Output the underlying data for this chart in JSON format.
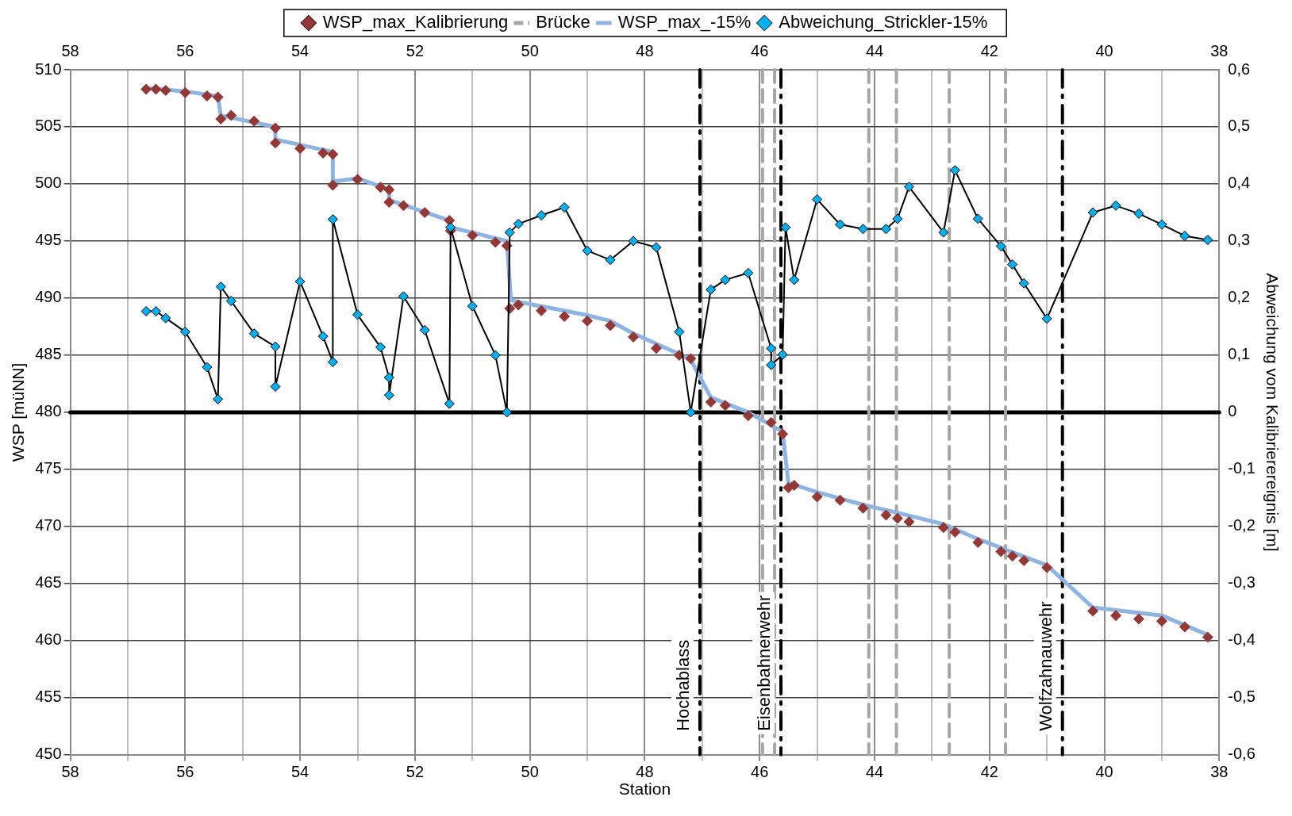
{
  "chart_data": {
    "type": "line",
    "xlabel": "Station",
    "ylabel": "WSP [müNN]",
    "y2label": "Abweichung vom Kalibrierereignis [m]",
    "xlim": [
      58,
      38
    ],
    "xticks": [
      58,
      {
        "value": 57,
        "label": null
      },
      56,
      {
        "value": 55,
        "label": null
      },
      54,
      {
        "value": 53,
        "label": null
      },
      52,
      {
        "value": 51,
        "label": null
      },
      50,
      {
        "value": 49,
        "label": null
      },
      48,
      {
        "value": 47,
        "label": null
      },
      46,
      {
        "value": 45,
        "label": null
      },
      44,
      {
        "value": 43,
        "label": null
      },
      42,
      {
        "value": 41,
        "label": null
      },
      40,
      {
        "value": 39,
        "label": null
      },
      38
    ],
    "x2lim": [
      58,
      38
    ],
    "x2ticks": [
      58,
      56,
      54,
      52,
      50,
      48,
      46,
      44,
      42,
      40,
      38
    ],
    "ylim": [
      450,
      510
    ],
    "yticks": [
      450,
      455,
      460,
      465,
      470,
      475,
      480,
      485,
      490,
      495,
      500,
      505,
      510
    ],
    "y2lim": [
      -0.6,
      0.6
    ],
    "y2ticks": [
      {
        "value": -0.6,
        "label": "-0,6"
      },
      {
        "value": -0.5,
        "label": "-0,5"
      },
      {
        "value": -0.4,
        "label": "-0,4"
      },
      {
        "value": -0.3,
        "label": "-0,3"
      },
      {
        "value": -0.2,
        "label": "-0,2"
      },
      {
        "value": -0.1,
        "label": "-0,1"
      },
      0,
      {
        "value": 0.1,
        "label": "0,1"
      },
      {
        "value": 0.2,
        "label": "0,2"
      },
      {
        "value": 0.3,
        "label": "0,3"
      },
      {
        "value": 0.4,
        "label": "0,4"
      },
      {
        "value": 0.5,
        "label": "0,5"
      },
      {
        "value": 0.6,
        "label": "0,6"
      }
    ],
    "grid": true,
    "legend": "top",
    "series": [
      {
        "name": "WSP_max_Kalibrierung",
        "type": "scatter",
        "marker": "diamond",
        "color": "#953735",
        "x": [
          56.68,
          56.51,
          56.34,
          56.0,
          55.62,
          55.43,
          55.38,
          55.2,
          54.8,
          54.43,
          54.43,
          54.0,
          53.6,
          53.43,
          53.43,
          53.0,
          52.6,
          52.45,
          52.45,
          52.2,
          51.83,
          51.4,
          51.38,
          51.0,
          50.6,
          50.4,
          50.35,
          50.2,
          49.8,
          49.4,
          49.0,
          48.6,
          48.2,
          47.8,
          47.4,
          47.2,
          46.85,
          46.6,
          46.2,
          45.8,
          45.6,
          45.5,
          45.4,
          45.0,
          44.6,
          44.2,
          43.8,
          43.6,
          43.4,
          42.8,
          42.6,
          42.2,
          41.8,
          41.6,
          41.4,
          41.0,
          40.2,
          39.8,
          39.4,
          39.0,
          38.6,
          38.2
        ],
        "values": [
          508.3,
          508.3,
          508.2,
          508.0,
          507.7,
          507.6,
          505.7,
          506.0,
          505.5,
          504.9,
          503.6,
          503.1,
          502.7,
          502.6,
          499.9,
          500.4,
          499.7,
          499.5,
          498.4,
          498.1,
          497.5,
          496.8,
          495.9,
          495.5,
          494.9,
          494.6,
          489.1,
          489.4,
          488.9,
          488.4,
          488.0,
          487.6,
          486.6,
          485.6,
          485.0,
          484.7,
          480.9,
          480.6,
          479.7,
          479.1,
          478.1,
          473.4,
          473.6,
          472.6,
          472.3,
          471.6,
          471.0,
          470.7,
          470.4,
          469.9,
          469.5,
          468.6,
          467.8,
          467.4,
          467.0,
          466.4,
          462.6,
          462.2,
          461.9,
          461.7,
          461.2,
          460.3
        ]
      },
      {
        "name": "WSP_max_-15%",
        "type": "line",
        "marker": "none",
        "color": "#8db4e2",
        "x": [
          56.68,
          56.0,
          55.43,
          55.38,
          54.43,
          54.43,
          53.43,
          53.43,
          53.0,
          52.45,
          52.45,
          51.4,
          51.38,
          50.4,
          50.33,
          49.0,
          48.6,
          48.2,
          47.4,
          47.2,
          46.85,
          46.6,
          46.2,
          45.6,
          45.5,
          45.0,
          44.2,
          43.6,
          42.8,
          42.2,
          41.0,
          40.2,
          39.0,
          38.2
        ],
        "values": [
          508.4,
          508.1,
          507.7,
          506.0,
          505.0,
          503.9,
          502.8,
          500.2,
          500.5,
          499.5,
          498.6,
          496.8,
          496.2,
          495.0,
          489.8,
          488.5,
          488.0,
          486.9,
          485.1,
          484.6,
          481.3,
          480.8,
          480.0,
          478.3,
          473.8,
          473.0,
          471.9,
          471.2,
          470.2,
          468.9,
          466.6,
          462.9,
          462.2,
          460.5
        ]
      },
      {
        "name": "Abweichung_Strickler-15%",
        "type": "line",
        "marker": "diamond",
        "axis": "y2",
        "color": "#00b0f0",
        "x": [
          56.68,
          56.51,
          56.34,
          56.0,
          55.62,
          55.43,
          55.38,
          55.2,
          54.8,
          54.43,
          54.43,
          54.0,
          53.6,
          53.43,
          53.43,
          53.0,
          52.6,
          52.45,
          52.45,
          52.2,
          51.83,
          51.4,
          51.38,
          51.0,
          50.6,
          50.4,
          50.35,
          50.2,
          49.8,
          49.4,
          49.0,
          48.6,
          48.2,
          47.8,
          47.4,
          47.2,
          46.85,
          46.6,
          46.2,
          45.8,
          45.8,
          45.6,
          45.55,
          45.4,
          45.0,
          44.6,
          44.2,
          43.8,
          43.6,
          43.4,
          42.8,
          42.6,
          42.2,
          41.8,
          41.6,
          41.4,
          41.0,
          40.2,
          39.8,
          39.4,
          39.0,
          38.6,
          38.2
        ],
        "values": [
          0.177,
          0.177,
          0.165,
          0.141,
          0.079,
          0.023,
          0.22,
          0.195,
          0.138,
          0.115,
          0.045,
          0.229,
          0.133,
          0.088,
          0.338,
          0.171,
          0.114,
          0.061,
          0.03,
          0.203,
          0.144,
          0.015,
          0.324,
          0.186,
          0.1,
          0,
          0.315,
          0.33,
          0.345,
          0.359,
          0.283,
          0.267,
          0.3,
          0.289,
          0.141,
          0,
          0.215,
          0.232,
          0.244,
          0.112,
          0.083,
          0.101,
          0.324,
          0.232,
          0.373,
          0.329,
          0.321,
          0.321,
          0.339,
          0.395,
          0.315,
          0.424,
          0.339,
          0.291,
          0.259,
          0.226,
          0.164,
          0.35,
          0.362,
          0.348,
          0.329,
          0.309,
          0.302
        ]
      }
    ],
    "ref_lines": [
      {
        "axis": "y2",
        "value": 0,
        "color": "#000000",
        "line_style": "solid"
      },
      {
        "axis": "x",
        "value": 47.04,
        "label": "Hochablass",
        "color": "#000000",
        "line_style": "dashed"
      },
      {
        "axis": "x",
        "value": 45.63,
        "label": "Eisenbahnerwehr",
        "color": "#000000",
        "line_style": "dashed"
      },
      {
        "axis": "x",
        "value": 40.73,
        "label": "Wolfzahnauwehr",
        "color": "#000000",
        "line_style": "dashed"
      },
      {
        "axis": "x",
        "value": 45.95,
        "label": "Brücke",
        "color": "#a6a6a6",
        "line_style": "dashed"
      },
      {
        "axis": "x",
        "value": 45.74,
        "color": "#a6a6a6",
        "line_style": "dashed"
      },
      {
        "axis": "x",
        "value": 44.1,
        "color": "#a6a6a6",
        "line_style": "dashed"
      },
      {
        "axis": "x",
        "value": 43.62,
        "color": "#a6a6a6",
        "line_style": "dashed"
      },
      {
        "axis": "x",
        "value": 42.7,
        "color": "#a6a6a6",
        "line_style": "dashed"
      },
      {
        "axis": "x",
        "value": 41.72,
        "color": "#a6a6a6",
        "line_style": "dashed"
      }
    ]
  }
}
